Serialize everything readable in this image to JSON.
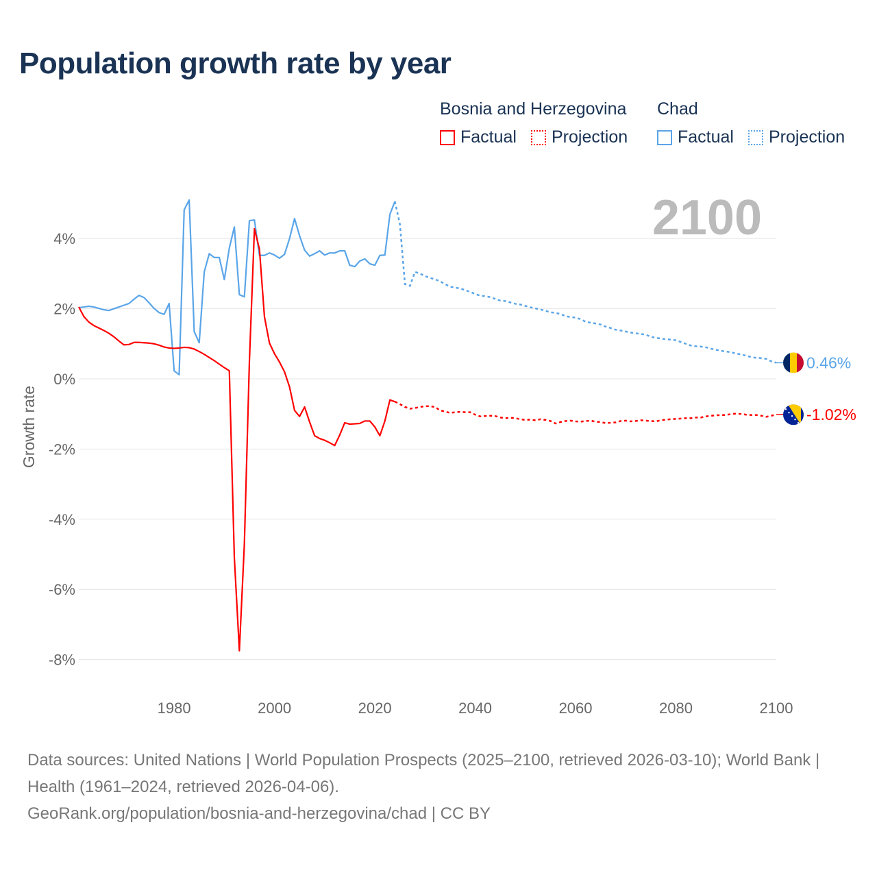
{
  "title": "Population growth rate by year",
  "legend": {
    "groups": [
      {
        "name": "Bosnia and Herzegovina",
        "color": "#ff0000",
        "factual_label": "Factual",
        "projection_label": "Projection"
      },
      {
        "name": "Chad",
        "color": "#5aa5e8",
        "factual_label": "Factual",
        "projection_label": "Projection"
      }
    ]
  },
  "year_overlay": "2100",
  "chart_data": {
    "type": "line",
    "title": "Population growth rate by year",
    "xlabel": "",
    "ylabel": "Growth rate",
    "xlim": [
      1961,
      2100
    ],
    "ylim": [
      -9,
      5.4
    ],
    "x_ticks": [
      1980,
      2000,
      2020,
      2040,
      2060,
      2080,
      2100
    ],
    "y_ticks": [
      4,
      2,
      0,
      -2,
      -4,
      -6,
      -8
    ],
    "y_tick_labels": [
      "4%",
      "2%",
      "0%",
      "-2%",
      "-4%",
      "-6%",
      "-8%"
    ],
    "grid": true,
    "series": [
      {
        "name": "Chad",
        "color": "#5aa5e8",
        "end_label": "0.46%",
        "factual_start": 1961,
        "factual": [
          2.03,
          2.05,
          2.07,
          2.05,
          2.01,
          1.97,
          1.95,
          2.0,
          2.05,
          2.1,
          2.15,
          2.27,
          2.38,
          2.32,
          2.17,
          2.01,
          1.89,
          1.84,
          2.15,
          0.23,
          0.12,
          4.82,
          5.1,
          1.35,
          1.03,
          3.05,
          3.57,
          3.46,
          3.46,
          2.83,
          3.73,
          4.33,
          2.4,
          2.34,
          4.51,
          4.53,
          3.52,
          3.52,
          3.59,
          3.53,
          3.44,
          3.55,
          4.0,
          4.57,
          4.08,
          3.67,
          3.5,
          3.57,
          3.65,
          3.53,
          3.59,
          3.59,
          3.65,
          3.65,
          3.24,
          3.2,
          3.36,
          3.42,
          3.28,
          3.24,
          3.52,
          3.53,
          4.69,
          5.06
        ],
        "projection_start": 2025,
        "projection": [
          4.4,
          2.7,
          2.65,
          3.05,
          3.0,
          2.93,
          2.88,
          2.84,
          2.78,
          2.7,
          2.63,
          2.6,
          2.58,
          2.53,
          2.48,
          2.42,
          2.37,
          2.36,
          2.33,
          2.28,
          2.23,
          2.22,
          2.18,
          2.14,
          2.12,
          2.08,
          2.04,
          2.01,
          1.98,
          1.94,
          1.9,
          1.88,
          1.85,
          1.79,
          1.76,
          1.75,
          1.7,
          1.63,
          1.6,
          1.58,
          1.55,
          1.49,
          1.45,
          1.4,
          1.38,
          1.35,
          1.32,
          1.3,
          1.28,
          1.26,
          1.2,
          1.17,
          1.15,
          1.13,
          1.12,
          1.1,
          1.05,
          1.0,
          0.95,
          0.93,
          0.92,
          0.9,
          0.86,
          0.83,
          0.8,
          0.78,
          0.76,
          0.72,
          0.7,
          0.66,
          0.62,
          0.6,
          0.59,
          0.57,
          0.5,
          0.46
        ]
      },
      {
        "name": "Bosnia and Herzegovina",
        "color": "#ff0000",
        "end_label": "-1.02%",
        "factual_start": 1961,
        "factual": [
          2.05,
          1.78,
          1.62,
          1.52,
          1.45,
          1.38,
          1.3,
          1.2,
          1.08,
          0.97,
          0.98,
          1.04,
          1.04,
          1.03,
          1.02,
          1.0,
          0.96,
          0.91,
          0.88,
          0.87,
          0.88,
          0.9,
          0.89,
          0.85,
          0.78,
          0.7,
          0.61,
          0.52,
          0.42,
          0.32,
          0.23,
          -5.1,
          -7.75,
          -4.7,
          0.5,
          4.28,
          3.7,
          1.77,
          1.02,
          0.72,
          0.48,
          0.2,
          -0.23,
          -0.9,
          -1.07,
          -0.8,
          -1.23,
          -1.62,
          -1.7,
          -1.75,
          -1.82,
          -1.9,
          -1.6,
          -1.25,
          -1.29,
          -1.28,
          -1.27,
          -1.2,
          -1.2,
          -1.37,
          -1.62,
          -1.2,
          -0.6,
          -0.65
        ],
        "projection_start": 2025,
        "projection": [
          -0.72,
          -0.8,
          -0.85,
          -0.83,
          -0.8,
          -0.78,
          -0.78,
          -0.8,
          -0.9,
          -0.93,
          -0.97,
          -0.95,
          -0.94,
          -0.95,
          -0.95,
          -1.02,
          -1.07,
          -1.06,
          -1.05,
          -1.06,
          -1.1,
          -1.12,
          -1.11,
          -1.12,
          -1.15,
          -1.17,
          -1.16,
          -1.18,
          -1.15,
          -1.17,
          -1.2,
          -1.27,
          -1.23,
          -1.2,
          -1.19,
          -1.21,
          -1.22,
          -1.2,
          -1.19,
          -1.22,
          -1.23,
          -1.26,
          -1.25,
          -1.24,
          -1.2,
          -1.19,
          -1.21,
          -1.2,
          -1.18,
          -1.19,
          -1.2,
          -1.21,
          -1.18,
          -1.16,
          -1.15,
          -1.14,
          -1.13,
          -1.12,
          -1.12,
          -1.1,
          -1.1,
          -1.07,
          -1.05,
          -1.04,
          -1.03,
          -1.03,
          -1.0,
          -0.99,
          -1.0,
          -1.02,
          -1.03,
          -1.03,
          -1.05,
          -1.08,
          -1.05,
          -1.02
        ]
      }
    ]
  },
  "footer": {
    "sources": "Data sources: United Nations | World Population Prospects (2025–2100, retrieved 2026-03-10); World Bank | Health (1961–2024, retrieved 2026-04-06).",
    "credit": "GeoRank.org/population/bosnia-and-herzegovina/chad | CC BY"
  }
}
